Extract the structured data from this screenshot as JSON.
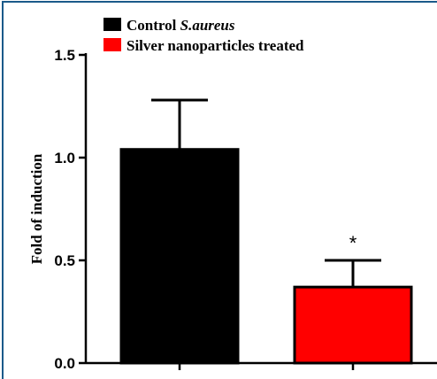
{
  "chart_data": {
    "type": "bar",
    "categories": [
      "Control S.aureus",
      "Silver nanoparticles treated"
    ],
    "series": [
      {
        "name": "Fold of induction",
        "values": [
          1.04,
          0.37
        ],
        "errors": [
          0.24,
          0.13
        ],
        "colors": [
          "#000000",
          "#ff0000"
        ]
      }
    ],
    "ylabel": "Fold of induction",
    "ylim": [
      0,
      1.5
    ],
    "yticks": [
      0.0,
      0.5,
      1.0,
      1.5
    ],
    "ytick_labels": [
      "0.0",
      "0.5",
      "1.0",
      "1.5"
    ],
    "legend": {
      "placement": "top-left",
      "entries": [
        {
          "prefix": "Control ",
          "italic": "S.aureus",
          "color": "#000000"
        },
        {
          "prefix": "Silver nanoparticles treated",
          "italic": "",
          "color": "#ff0000"
        }
      ]
    },
    "annotations": [
      {
        "text": "*",
        "category_index": 1
      }
    ],
    "grid": false
  },
  "style": {
    "frame_color": "#1b5a8a",
    "axis_color": "#000000"
  }
}
